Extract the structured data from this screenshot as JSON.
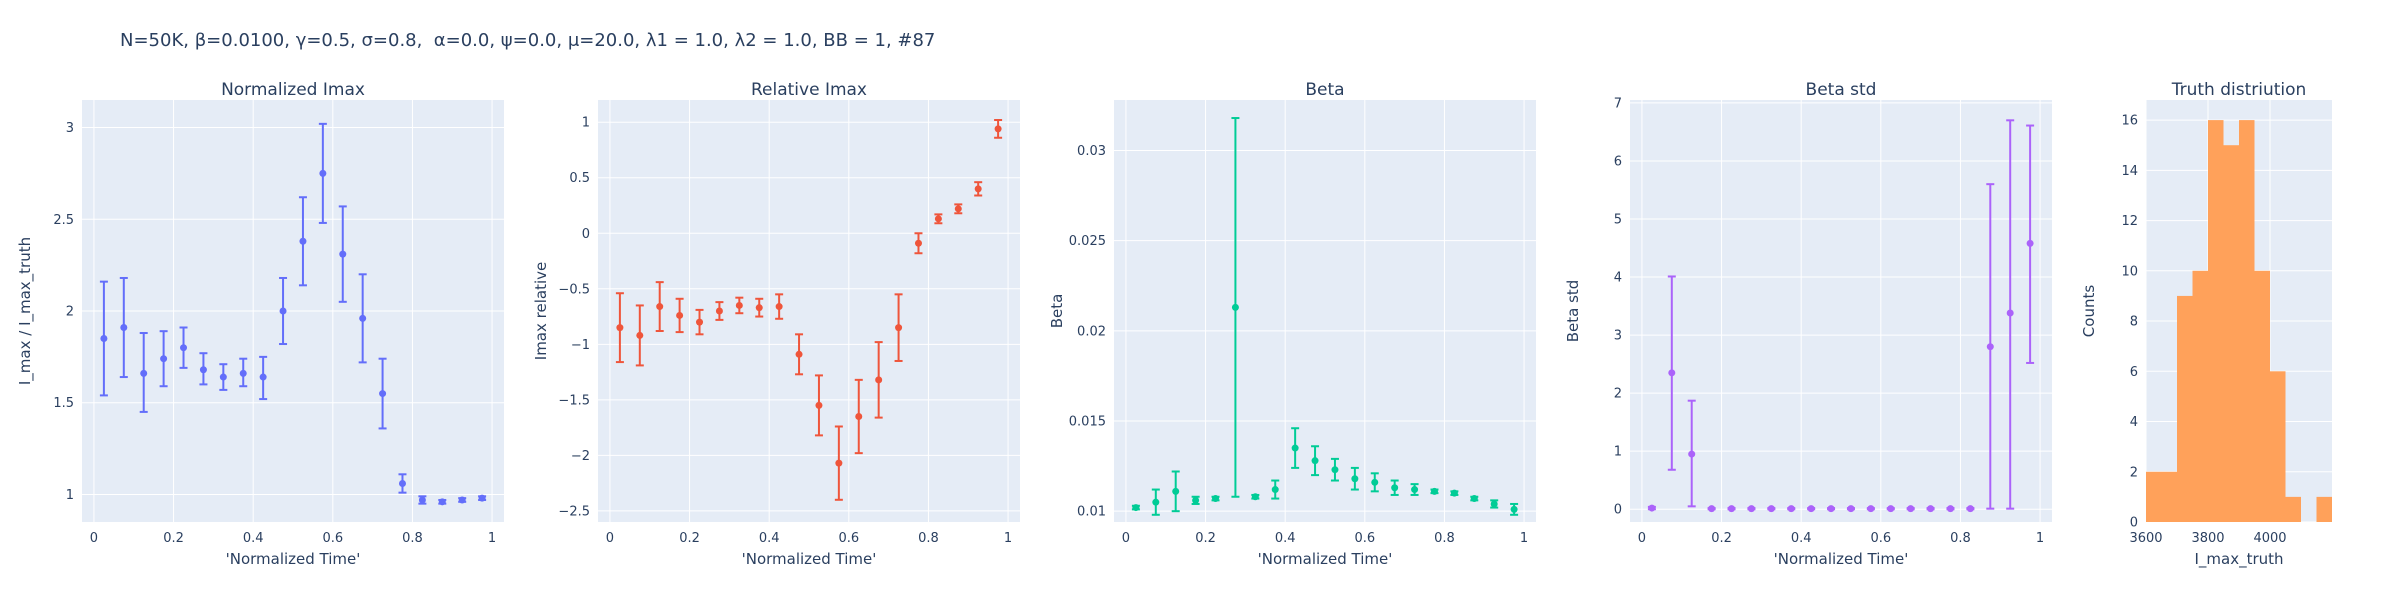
{
  "figure_title": "N=50K, β=0.0100, γ=0.5, σ=0.8,  α=0.0, ψ=0.0, μ=20.0, λ1 = 1.0, λ2 = 1.0, BB = 1, #87",
  "colors": {
    "plot_bg": "#E5ECF6",
    "grid": "#ffffff",
    "text": "#2a3f5f"
  },
  "chart_data": [
    {
      "type": "scatter",
      "title": "Normalized Imax",
      "xlabel": "'Normalized Time'",
      "ylabel": "I_max / I_max_truth",
      "color": "#636EFA",
      "xlim": [
        -0.03,
        1.03
      ],
      "ylim": [
        0.85,
        3.15
      ],
      "xticks": [
        0,
        0.2,
        0.4,
        0.6,
        0.8,
        1
      ],
      "xtick_labels": [
        "0",
        "0.2",
        "0.4",
        "0.6",
        "0.8",
        "1"
      ],
      "yticks": [
        1,
        1.5,
        2,
        2.5,
        3
      ],
      "ytick_labels": [
        "1",
        "1.5",
        "2",
        "2.5",
        "3"
      ],
      "x": [
        0.025,
        0.075,
        0.125,
        0.175,
        0.225,
        0.275,
        0.325,
        0.375,
        0.425,
        0.475,
        0.525,
        0.575,
        0.625,
        0.675,
        0.725,
        0.775,
        0.825,
        0.875,
        0.925,
        0.975
      ],
      "y": [
        1.85,
        1.91,
        1.66,
        1.74,
        1.8,
        1.68,
        1.64,
        1.66,
        1.64,
        2.0,
        2.38,
        2.75,
        2.31,
        1.96,
        1.55,
        1.06,
        0.97,
        0.96,
        0.97,
        0.98
      ],
      "err_lo": [
        0.31,
        0.27,
        0.21,
        0.15,
        0.11,
        0.08,
        0.07,
        0.07,
        0.12,
        0.18,
        0.24,
        0.27,
        0.26,
        0.24,
        0.19,
        0.05,
        0.02,
        0.01,
        0.01,
        0.01
      ],
      "err_hi": [
        0.31,
        0.27,
        0.22,
        0.15,
        0.11,
        0.09,
        0.07,
        0.08,
        0.11,
        0.18,
        0.24,
        0.27,
        0.26,
        0.24,
        0.19,
        0.05,
        0.02,
        0.01,
        0.01,
        0.01
      ]
    },
    {
      "type": "scatter",
      "title": "Relative Imax",
      "xlabel": "'Normalized Time'",
      "ylabel": "Imax relative",
      "color": "#EF553B",
      "xlim": [
        -0.03,
        1.03
      ],
      "ylim": [
        -2.6,
        1.2
      ],
      "xticks": [
        0,
        0.2,
        0.4,
        0.6,
        0.8,
        1
      ],
      "xtick_labels": [
        "0",
        "0.2",
        "0.4",
        "0.6",
        "0.8",
        "1"
      ],
      "yticks": [
        -2.5,
        -2,
        -1.5,
        -1,
        -0.5,
        0,
        0.5,
        1
      ],
      "ytick_labels": [
        "−2.5",
        "−2",
        "−1.5",
        "−1",
        "−0.5",
        "0",
        "0.5",
        "1"
      ],
      "x": [
        0.025,
        0.075,
        0.125,
        0.175,
        0.225,
        0.275,
        0.325,
        0.375,
        0.425,
        0.475,
        0.525,
        0.575,
        0.625,
        0.675,
        0.725,
        0.775,
        0.825,
        0.875,
        0.925,
        0.975
      ],
      "y": [
        -0.85,
        -0.92,
        -0.66,
        -0.74,
        -0.8,
        -0.7,
        -0.65,
        -0.67,
        -0.66,
        -1.09,
        -1.55,
        -2.07,
        -1.65,
        -1.32,
        -0.85,
        -0.09,
        0.13,
        0.22,
        0.4,
        0.94
      ],
      "err_lo": [
        0.31,
        0.27,
        0.22,
        0.15,
        0.11,
        0.08,
        0.07,
        0.08,
        0.11,
        0.18,
        0.27,
        0.33,
        0.33,
        0.34,
        0.3,
        0.09,
        0.04,
        0.04,
        0.06,
        0.08
      ],
      "err_hi": [
        0.31,
        0.27,
        0.22,
        0.15,
        0.11,
        0.08,
        0.07,
        0.08,
        0.11,
        0.18,
        0.27,
        0.33,
        0.33,
        0.34,
        0.3,
        0.09,
        0.04,
        0.04,
        0.06,
        0.08
      ]
    },
    {
      "type": "scatter",
      "title": "Beta",
      "xlabel": "'Normalized Time'",
      "ylabel": "Beta",
      "color": "#00CC96",
      "xlim": [
        -0.03,
        1.03
      ],
      "ylim": [
        0.0094,
        0.0328
      ],
      "xticks": [
        0,
        0.2,
        0.4,
        0.6,
        0.8,
        1
      ],
      "xtick_labels": [
        "0",
        "0.2",
        "0.4",
        "0.6",
        "0.8",
        "1"
      ],
      "yticks": [
        0.01,
        0.015,
        0.02,
        0.025,
        0.03
      ],
      "ytick_labels": [
        "0.01",
        "0.015",
        "0.02",
        "0.025",
        "0.03"
      ],
      "x": [
        0.025,
        0.075,
        0.125,
        0.175,
        0.225,
        0.275,
        0.325,
        0.375,
        0.425,
        0.475,
        0.525,
        0.575,
        0.625,
        0.675,
        0.725,
        0.775,
        0.825,
        0.875,
        0.925,
        0.975
      ],
      "y": [
        0.0102,
        0.0105,
        0.0111,
        0.0106,
        0.0107,
        0.0213,
        0.0108,
        0.0112,
        0.0135,
        0.0128,
        0.0123,
        0.0118,
        0.0116,
        0.0113,
        0.0112,
        0.0111,
        0.011,
        0.0107,
        0.0104,
        0.0101
      ],
      "err_lo": [
        0.0001,
        0.0007,
        0.0011,
        0.0002,
        0.0001,
        0.0105,
        0.0001,
        0.0005,
        0.0011,
        0.0008,
        0.0006,
        0.0006,
        0.0005,
        0.0004,
        0.0003,
        0.0001,
        0.0001,
        0.0001,
        0.0002,
        0.0003
      ],
      "err_hi": [
        0.0001,
        0.0007,
        0.0011,
        0.0002,
        0.0001,
        0.0105,
        0.0001,
        0.0005,
        0.0011,
        0.0008,
        0.0006,
        0.0006,
        0.0005,
        0.0004,
        0.0003,
        0.0001,
        0.0001,
        0.0001,
        0.0002,
        0.0003
      ]
    },
    {
      "type": "scatter",
      "title": "Beta std",
      "xlabel": "'Normalized Time'",
      "ylabel": "Beta std",
      "color": "#AB63FA",
      "xlim": [
        -0.03,
        1.03
      ],
      "ylim": [
        -0.22,
        7.05
      ],
      "xticks": [
        0,
        0.2,
        0.4,
        0.6,
        0.8,
        1
      ],
      "xtick_labels": [
        "0",
        "0.2",
        "0.4",
        "0.6",
        "0.8",
        "1"
      ],
      "yticks": [
        0,
        1,
        2,
        3,
        4,
        5,
        6,
        7
      ],
      "ytick_labels": [
        "0",
        "1",
        "2",
        "3",
        "4",
        "5",
        "6",
        "7"
      ],
      "x": [
        0.025,
        0.075,
        0.125,
        0.175,
        0.225,
        0.275,
        0.325,
        0.375,
        0.425,
        0.475,
        0.525,
        0.575,
        0.625,
        0.675,
        0.725,
        0.775,
        0.825,
        0.875,
        0.925,
        0.975
      ],
      "y": [
        0.02,
        2.35,
        0.95,
        0.01,
        0.01,
        0.01,
        0.01,
        0.01,
        0.01,
        0.01,
        0.01,
        0.01,
        0.01,
        0.01,
        0.01,
        0.01,
        0.01,
        2.8,
        3.38,
        4.58
      ],
      "err_lo": [
        0.02,
        1.67,
        0.9,
        0.01,
        0.01,
        0.01,
        0.01,
        0.01,
        0.01,
        0.01,
        0.01,
        0.01,
        0.01,
        0.01,
        0.01,
        0.01,
        0.01,
        2.79,
        3.37,
        2.06
      ],
      "err_hi": [
        0.02,
        1.66,
        0.92,
        0.01,
        0.01,
        0.01,
        0.01,
        0.01,
        0.01,
        0.01,
        0.01,
        0.01,
        0.01,
        0.01,
        0.01,
        0.01,
        0.01,
        2.8,
        3.32,
        2.03
      ]
    },
    {
      "type": "bar",
      "title": "Truth distriution",
      "xlabel": "I_max_truth",
      "ylabel": "Counts",
      "color": "#FFA15A",
      "xlim": [
        3600,
        4200
      ],
      "ylim": [
        0,
        16.8
      ],
      "xticks": [
        3600,
        3800,
        4000
      ],
      "xtick_labels": [
        "3600",
        "3800",
        "4000"
      ],
      "yticks": [
        0,
        2,
        4,
        6,
        8,
        10,
        12,
        14,
        16
      ],
      "ytick_labels": [
        "0",
        "2",
        "4",
        "6",
        "8",
        "10",
        "12",
        "14",
        "16"
      ],
      "bin_start": [
        3600,
        3650,
        3700,
        3750,
        3800,
        3850,
        3900,
        3950,
        4000,
        4050,
        4100,
        4150
      ],
      "bin_end": [
        3650,
        3700,
        3750,
        3800,
        3850,
        3900,
        3950,
        4000,
        4050,
        4100,
        4150,
        4200
      ],
      "values": [
        2,
        2,
        9,
        10,
        16,
        15,
        16,
        10,
        6,
        1,
        0,
        1
      ]
    }
  ]
}
